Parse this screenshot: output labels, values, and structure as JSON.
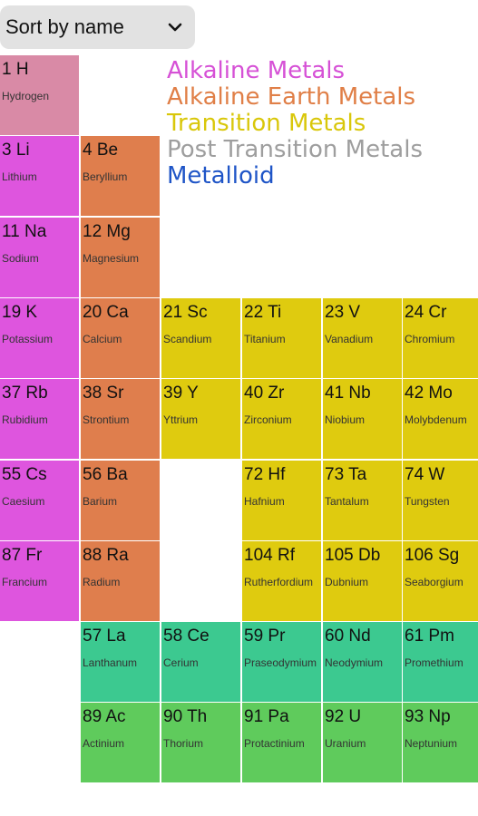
{
  "sort_control": {
    "label": "Sort by name",
    "icon": "chevron-down-icon"
  },
  "legend": [
    {
      "label": "Alkaline Metals",
      "color": "#d651d6"
    },
    {
      "label": "Alkaline Earth Metals",
      "color": "#e07f47"
    },
    {
      "label": "Transition Metals",
      "color": "#d9c70a"
    },
    {
      "label": "Post Transition Metals",
      "color": "#9e9e9e"
    },
    {
      "label": "Metalloid",
      "color": "#1f55c7"
    }
  ],
  "category_colors": {
    "hydrogen": "#d98aa6",
    "alkali": "#de55de",
    "alkaline_earth": "#df7e4d",
    "transition": "#dfcb0f",
    "lanthanide": "#3cc990",
    "actinide": "#5fcb5c"
  },
  "elements": [
    {
      "title": "1 H",
      "name": "Hydrogen",
      "category": "hydrogen",
      "row": 0,
      "col": 0
    },
    {
      "title": "3 Li",
      "name": "Lithium",
      "category": "alkali",
      "row": 1,
      "col": 0
    },
    {
      "title": "4 Be",
      "name": "Beryllium",
      "category": "alkaline_earth",
      "row": 1,
      "col": 1
    },
    {
      "title": "11 Na",
      "name": "Sodium",
      "category": "alkali",
      "row": 2,
      "col": 0
    },
    {
      "title": "12 Mg",
      "name": "Magnesium",
      "category": "alkaline_earth",
      "row": 2,
      "col": 1
    },
    {
      "title": "19 K",
      "name": "Potassium",
      "category": "alkali",
      "row": 3,
      "col": 0
    },
    {
      "title": "20 Ca",
      "name": "Calcium",
      "category": "alkaline_earth",
      "row": 3,
      "col": 1
    },
    {
      "title": "21 Sc",
      "name": "Scandium",
      "category": "transition",
      "row": 3,
      "col": 2
    },
    {
      "title": "22 Ti",
      "name": "Titanium",
      "category": "transition",
      "row": 3,
      "col": 3
    },
    {
      "title": "23 V",
      "name": "Vanadium",
      "category": "transition",
      "row": 3,
      "col": 4
    },
    {
      "title": "24 Cr",
      "name": "Chromium",
      "category": "transition",
      "row": 3,
      "col": 5
    },
    {
      "title": "37 Rb",
      "name": "Rubidium",
      "category": "alkali",
      "row": 4,
      "col": 0
    },
    {
      "title": "38 Sr",
      "name": "Strontium",
      "category": "alkaline_earth",
      "row": 4,
      "col": 1
    },
    {
      "title": "39 Y",
      "name": "Yttrium",
      "category": "transition",
      "row": 4,
      "col": 2
    },
    {
      "title": "40 Zr",
      "name": "Zirconium",
      "category": "transition",
      "row": 4,
      "col": 3
    },
    {
      "title": "41 Nb",
      "name": "Niobium",
      "category": "transition",
      "row": 4,
      "col": 4
    },
    {
      "title": "42 Mo",
      "name": "Molybdenum",
      "category": "transition",
      "row": 4,
      "col": 5
    },
    {
      "title": "55 Cs",
      "name": "Caesium",
      "category": "alkali",
      "row": 5,
      "col": 0
    },
    {
      "title": "56 Ba",
      "name": "Barium",
      "category": "alkaline_earth",
      "row": 5,
      "col": 1
    },
    {
      "title": "72 Hf",
      "name": "Hafnium",
      "category": "transition",
      "row": 5,
      "col": 3
    },
    {
      "title": "73 Ta",
      "name": "Tantalum",
      "category": "transition",
      "row": 5,
      "col": 4
    },
    {
      "title": "74 W",
      "name": "Tungsten",
      "category": "transition",
      "row": 5,
      "col": 5
    },
    {
      "title": "87 Fr",
      "name": "Francium",
      "category": "alkali",
      "row": 6,
      "col": 0
    },
    {
      "title": "88 Ra",
      "name": "Radium",
      "category": "alkaline_earth",
      "row": 6,
      "col": 1
    },
    {
      "title": "104 Rf",
      "name": "Rutherfordium",
      "category": "transition",
      "row": 6,
      "col": 3
    },
    {
      "title": "105 Db",
      "name": "Dubnium",
      "category": "transition",
      "row": 6,
      "col": 4
    },
    {
      "title": "106 Sg",
      "name": "Seaborgium",
      "category": "transition",
      "row": 6,
      "col": 5
    },
    {
      "title": "57 La",
      "name": "Lanthanum",
      "category": "lanthanide",
      "row": 7,
      "col": 1
    },
    {
      "title": "58 Ce",
      "name": "Cerium",
      "category": "lanthanide",
      "row": 7,
      "col": 2
    },
    {
      "title": "59 Pr",
      "name": "Praseodymium",
      "category": "lanthanide",
      "row": 7,
      "col": 3
    },
    {
      "title": "60 Nd",
      "name": "Neodymium",
      "category": "lanthanide",
      "row": 7,
      "col": 4
    },
    {
      "title": "61 Pm",
      "name": "Promethium",
      "category": "lanthanide",
      "row": 7,
      "col": 5
    },
    {
      "title": "89 Ac",
      "name": "Actinium",
      "category": "actinide",
      "row": 8,
      "col": 1
    },
    {
      "title": "90 Th",
      "name": "Thorium",
      "category": "actinide",
      "row": 8,
      "col": 2
    },
    {
      "title": "91 Pa",
      "name": "Protactinium",
      "category": "actinide",
      "row": 8,
      "col": 3
    },
    {
      "title": "92 U",
      "name": "Uranium",
      "category": "actinide",
      "row": 8,
      "col": 4
    },
    {
      "title": "93 Np",
      "name": "Neptunium",
      "category": "actinide",
      "row": 8,
      "col": 5
    }
  ]
}
